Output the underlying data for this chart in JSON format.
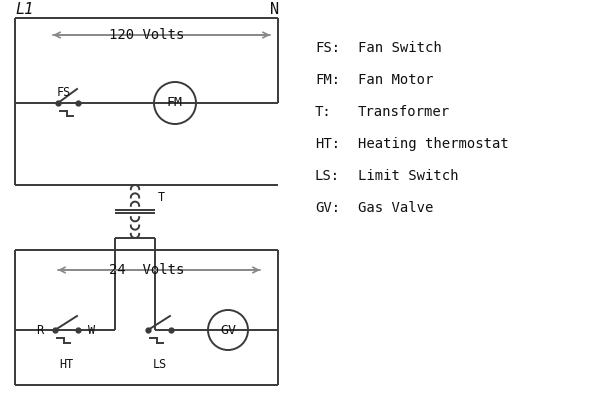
{
  "bg_color": "#ffffff",
  "line_color": "#3a3a3a",
  "gray_color": "#888888",
  "text_color": "#111111",
  "legend_items": [
    [
      "FS:",
      "Fan Switch"
    ],
    [
      "FM:",
      "Fan Motor"
    ],
    [
      "T:",
      "Transformer"
    ],
    [
      "HT:",
      "Heating thermostat"
    ],
    [
      "LS:",
      "Limit Switch"
    ],
    [
      "GV:",
      "Gas Valve"
    ]
  ],
  "L1_label": "L1",
  "N_label": "N",
  "v120_label": "120 Volts",
  "v24_label": "24  Volts",
  "T_label": "T"
}
